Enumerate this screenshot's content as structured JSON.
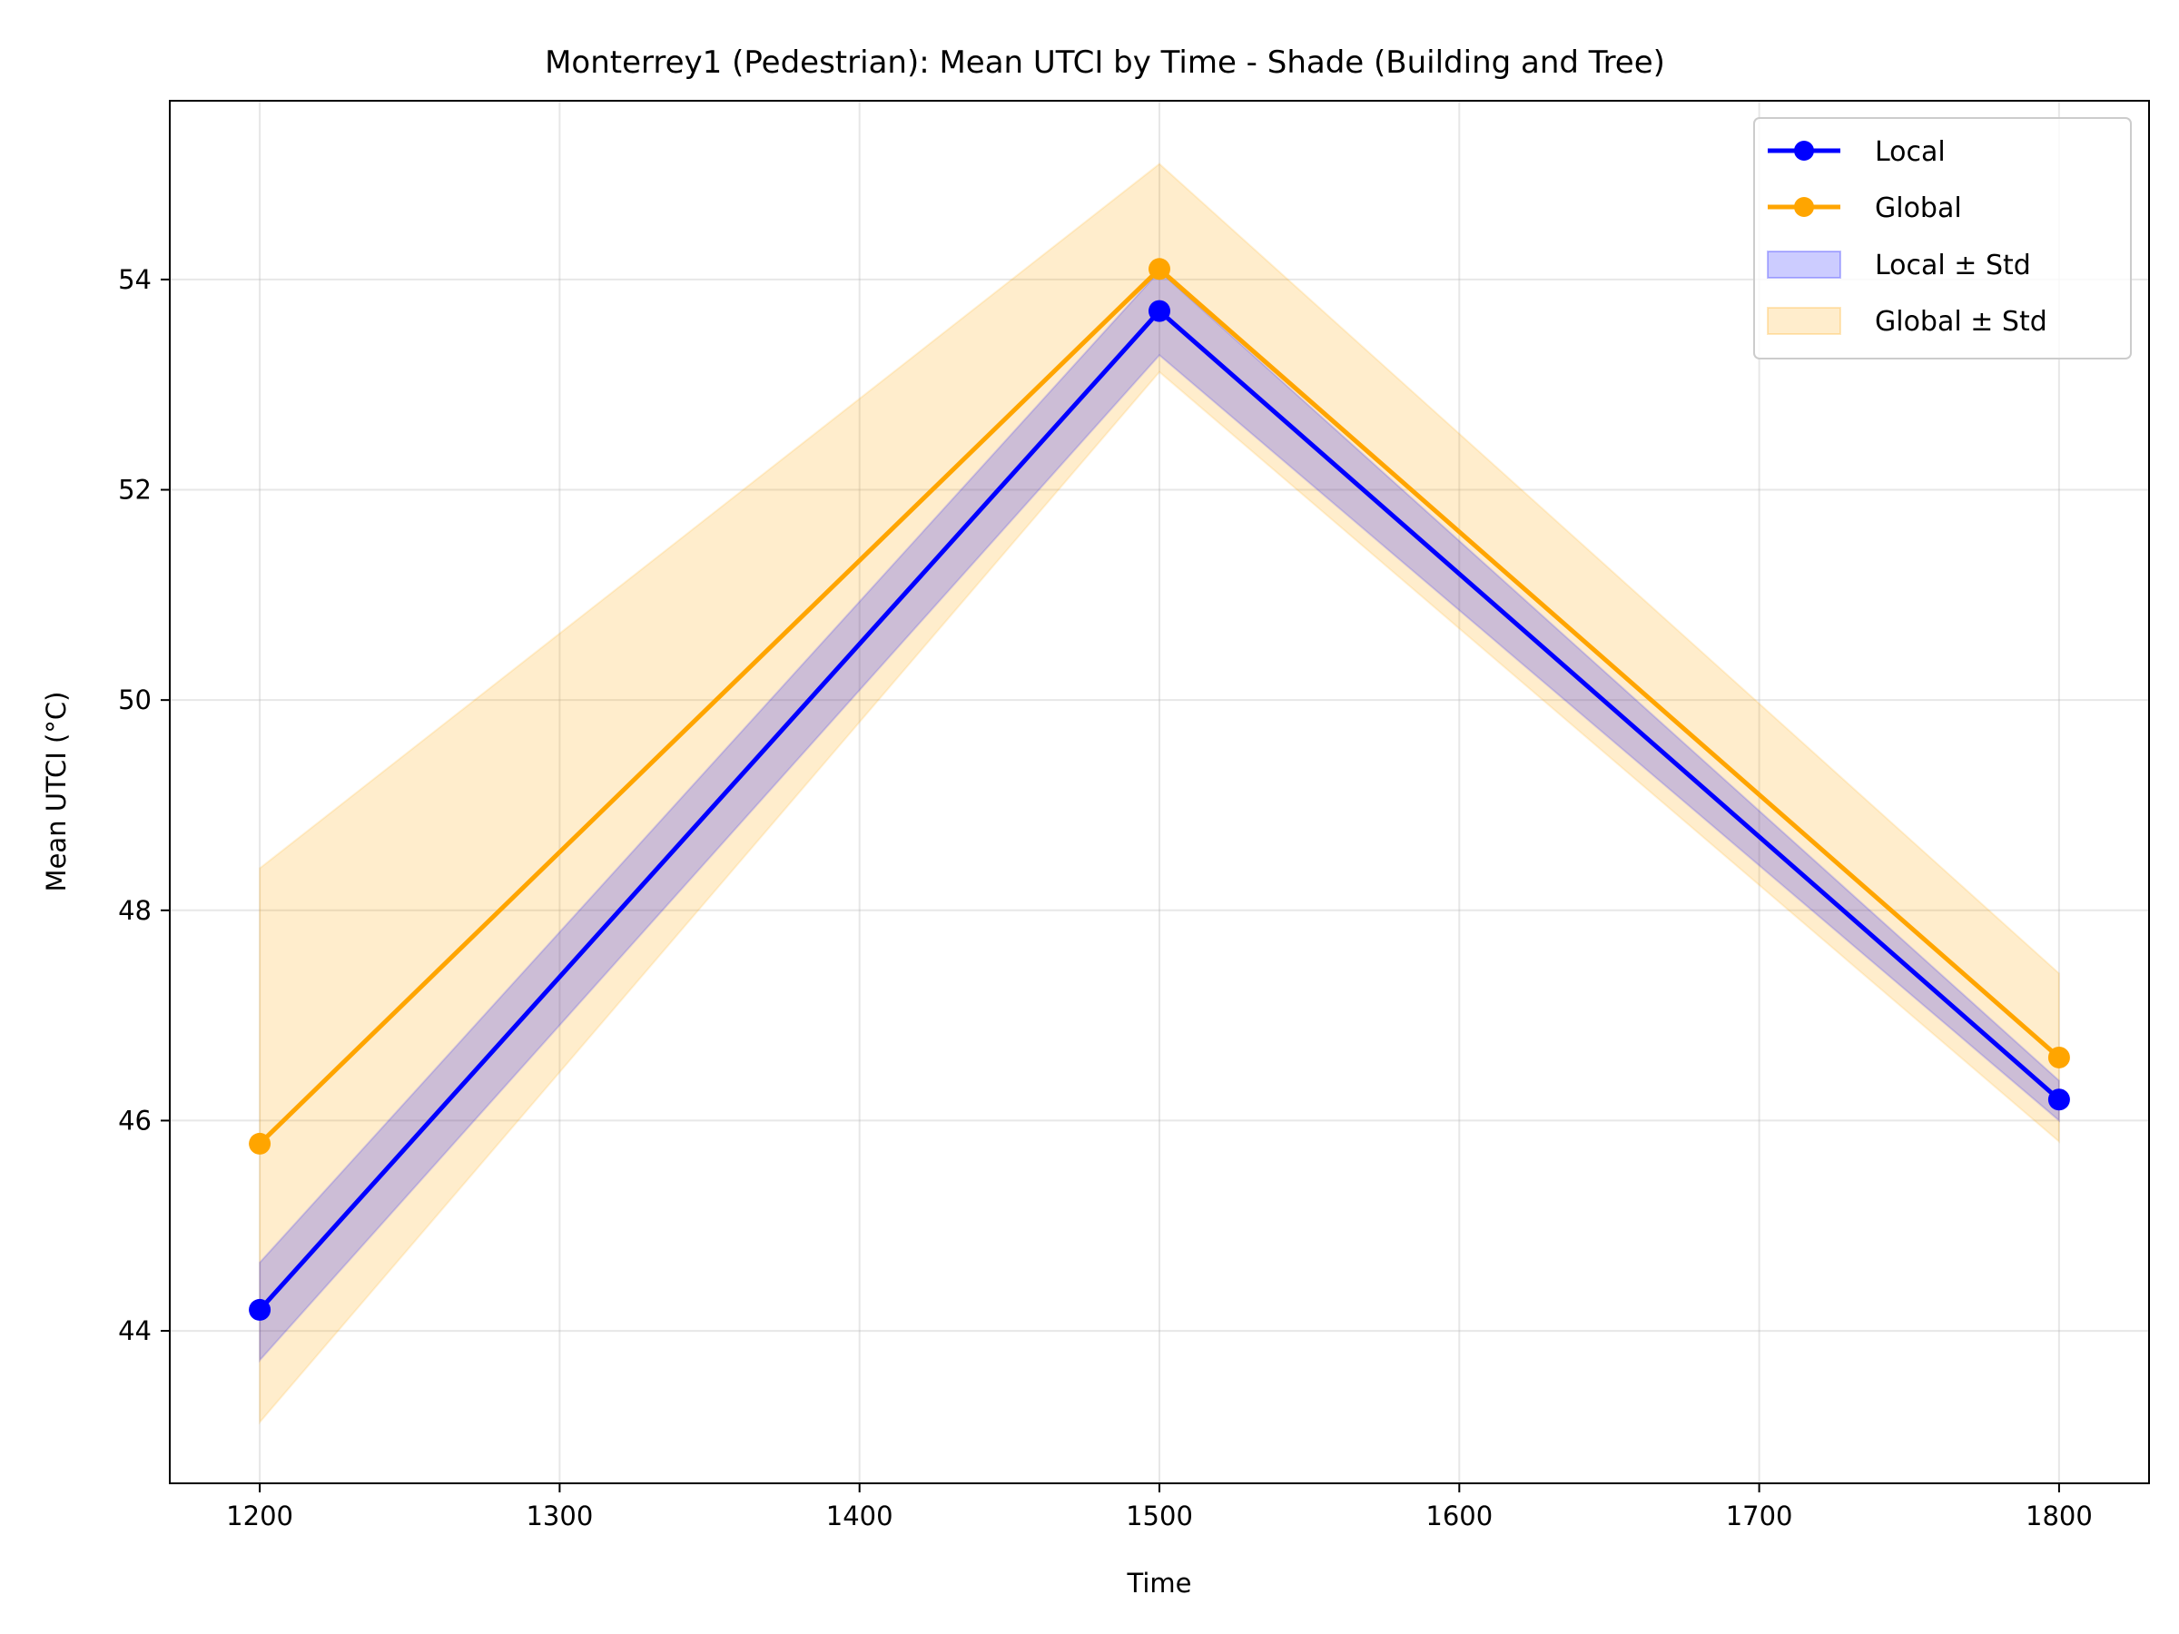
{
  "chart_data": {
    "type": "line",
    "title": "Monterrey1 (Pedestrian): Mean UTCI by Time - Shade (Building and Tree)",
    "xlabel": "Time",
    "ylabel": "Mean UTCI (°C)",
    "xlim": [
      1170,
      1830
    ],
    "ylim": [
      42.55,
      55.7
    ],
    "x_ticks": [
      1200,
      1300,
      1400,
      1500,
      1600,
      1700,
      1800
    ],
    "y_ticks": [
      44,
      46,
      48,
      50,
      52,
      54
    ],
    "grid": true,
    "legend_position": "top-right",
    "x": [
      1200,
      1500,
      1800
    ],
    "series": [
      {
        "name": "Local",
        "values": [
          44.2,
          53.7,
          46.2
        ],
        "lower": [
          43.72,
          53.28,
          46.0
        ],
        "upper": [
          44.65,
          54.08,
          46.38
        ],
        "color": "#0000ff",
        "band_label": "Local ± Std",
        "band_color": "#0000ff"
      },
      {
        "name": "Global",
        "values": [
          45.78,
          54.1,
          46.6
        ],
        "lower": [
          43.13,
          53.12,
          45.8
        ],
        "upper": [
          48.4,
          55.1,
          47.4
        ],
        "color": "#ffa500",
        "band_label": "Global ± Std",
        "band_color": "#ffa500"
      }
    ]
  }
}
